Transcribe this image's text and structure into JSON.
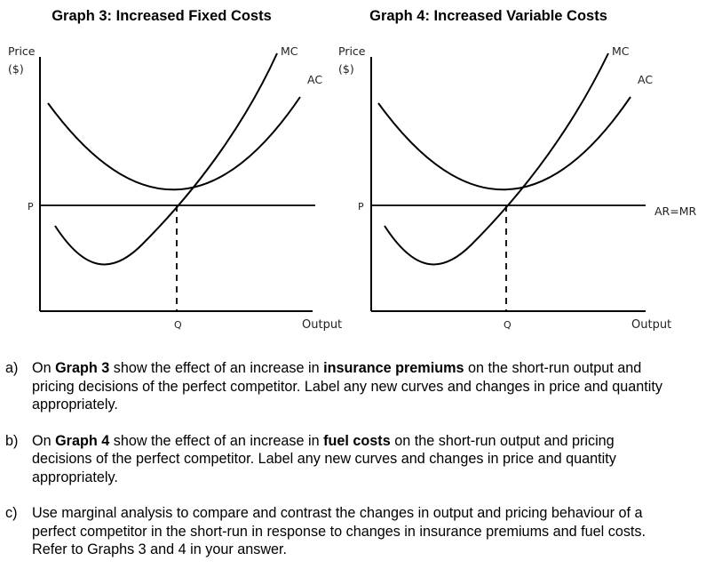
{
  "graphs": [
    {
      "title": "Graph 3: Increased Fixed Costs",
      "y_axis_label_line1": "Price",
      "y_axis_label_line2": "($)",
      "x_axis_label": "Output",
      "price_label": "P",
      "quantity_label": "Q",
      "mc_label": "MC",
      "ac_label": "AC",
      "ar_label": ""
    },
    {
      "title": "Graph 4: Increased Variable Costs",
      "y_axis_label_line1": "Price",
      "y_axis_label_line2": "($)",
      "x_axis_label": "Output",
      "price_label": "P",
      "quantity_label": "Q",
      "mc_label": "MC",
      "ac_label": "AC",
      "ar_label": "AR=MR"
    }
  ],
  "questions": [
    {
      "letter": "a)",
      "parts": [
        {
          "text": "On ",
          "bold": false
        },
        {
          "text": "Graph 3",
          "bold": true
        },
        {
          "text": " show the effect of an increase in ",
          "bold": false
        },
        {
          "text": "insurance premiums",
          "bold": true
        },
        {
          "text": " on the short-run output and pricing decisions of the perfect competitor. Label any new curves and changes in price and quantity appropriately.",
          "bold": false
        }
      ]
    },
    {
      "letter": "b)",
      "parts": [
        {
          "text": "On ",
          "bold": false
        },
        {
          "text": "Graph 4",
          "bold": true
        },
        {
          "text": " show the effect of an increase in ",
          "bold": false
        },
        {
          "text": "fuel costs",
          "bold": true
        },
        {
          "text": " on the short-run output and pricing decisions of the perfect competitor. Label any new curves and changes in price and quantity appropriately.",
          "bold": false
        }
      ]
    },
    {
      "letter": "c)",
      "parts": [
        {
          "text": "Use marginal analysis to compare and contrast the changes in output and pricing behaviour of a perfect competitor in the short-run in response to changes in insurance premiums and fuel costs. Refer to Graphs 3 and 4 in your answer.",
          "bold": false
        }
      ]
    }
  ]
}
